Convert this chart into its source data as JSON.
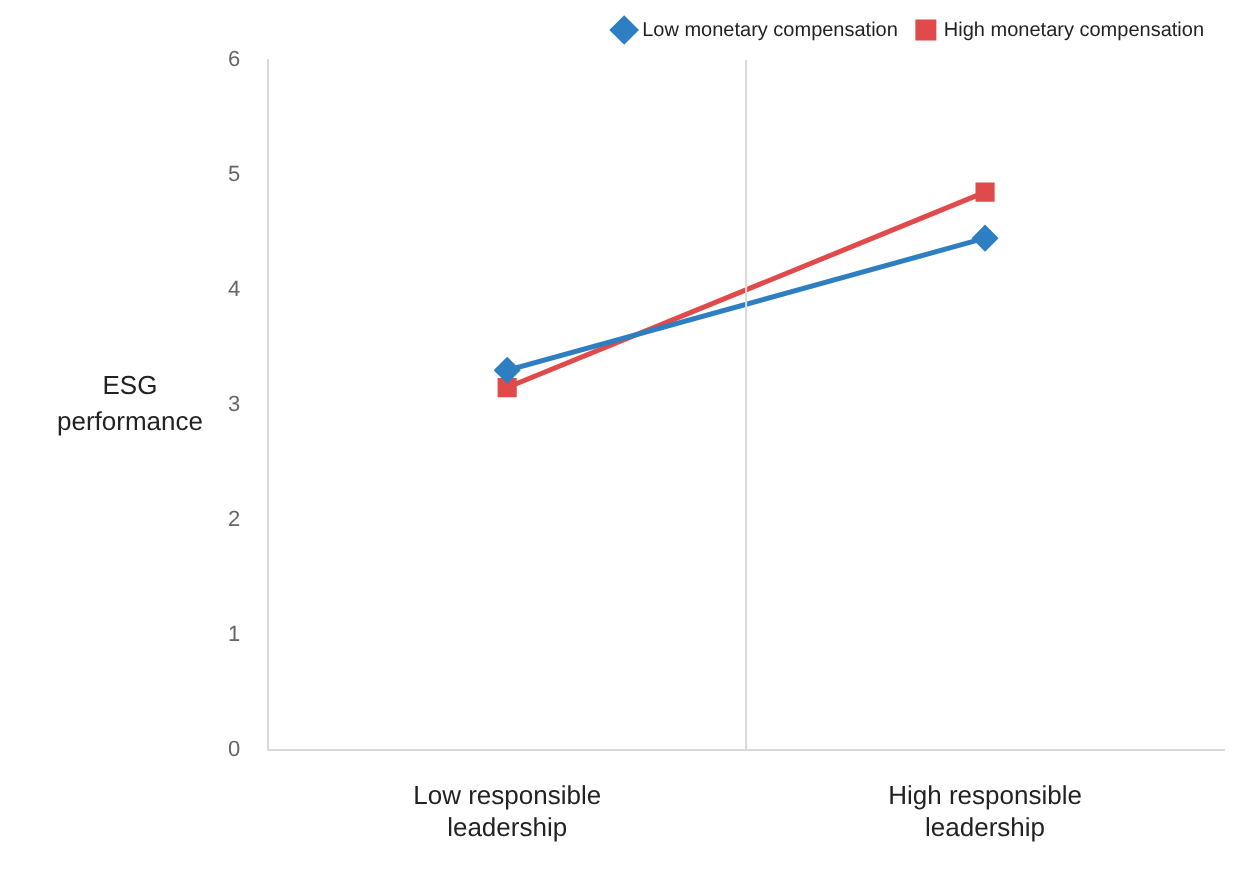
{
  "chart_data": {
    "type": "line",
    "ylabel": "ESG performance",
    "categories": [
      "Low responsible leadership",
      "High responsible leadership"
    ],
    "series": [
      {
        "name": "Low monetary compensation",
        "color": "#2e7fc2",
        "values": [
          3.3,
          4.45
        ],
        "marker": "diamond"
      },
      {
        "name": "High monetary compensation",
        "color": "#e04a4a",
        "values": [
          3.15,
          4.85
        ],
        "marker": "square"
      }
    ],
    "ylim": [
      0,
      6
    ],
    "yticks": [
      0,
      1,
      2,
      3,
      4,
      5,
      6
    ],
    "grid": "x",
    "legend": "top right"
  }
}
